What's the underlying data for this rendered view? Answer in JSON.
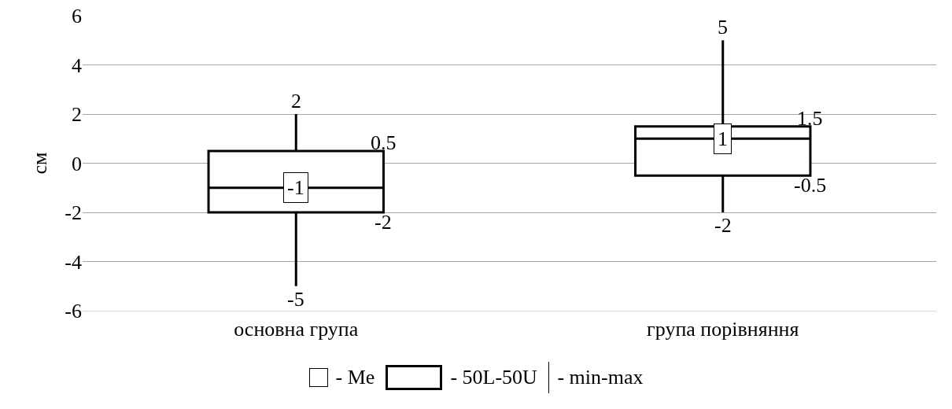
{
  "chart_data": {
    "type": "box",
    "ylabel": "см",
    "categories": [
      "основна група",
      "група порівняння"
    ],
    "boxes": [
      {
        "low": -5,
        "q1": -2,
        "median": -1,
        "q3": 0.5,
        "high": 2
      },
      {
        "low": -2,
        "q1": -0.5,
        "median": 1,
        "q3": 1.5,
        "high": 5
      }
    ],
    "ylim": [
      -6,
      6
    ],
    "yticks": [
      -6,
      -4,
      -2,
      0,
      2,
      4,
      6
    ],
    "grid": "y",
    "annotations": [
      {
        "text": "2",
        "x": "основна група",
        "y": 2
      },
      "0.5",
      "-2",
      {
        "text": "-1",
        "x": "основна група",
        "y": -1
      },
      {
        "text": "-5",
        "x": "основна група",
        "y": -5
      },
      {
        "text": "5",
        "x": "група порівняння",
        "y": 5
      },
      "1.5",
      "-0.5",
      {
        "text": "1",
        "x": "група порівняння",
        "y": 1
      },
      {
        "text": "-2",
        "x": "група порівняння",
        "y": -2
      },
      "- Me",
      "- 50L-50U",
      "- min-max"
    ]
  }
}
